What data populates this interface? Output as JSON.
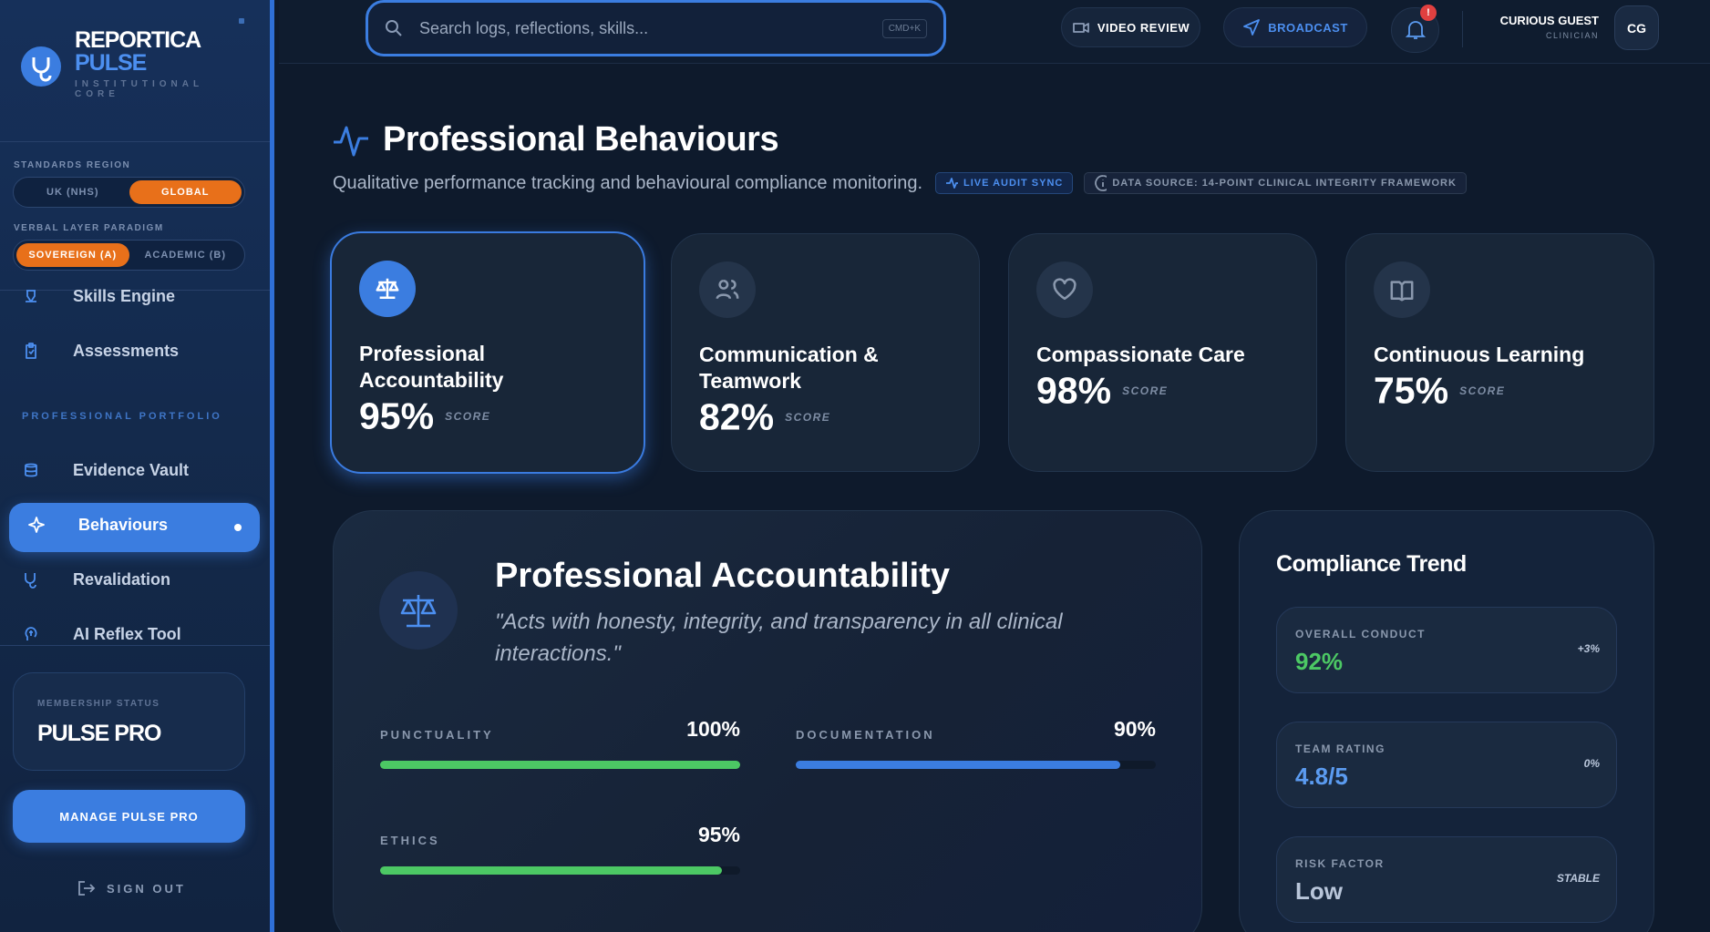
{
  "brand": {
    "name": "REPORTICA",
    "product": "PULSE",
    "tagline": "INSTITUTIONAL CORE"
  },
  "settings": [
    {
      "label": "STANDARDS REGION",
      "options": [
        "UK (NHS)",
        "GLOBAL"
      ],
      "active": 1
    },
    {
      "label": "VERBAL LAYER PARADIGM",
      "options": [
        "SOVEREIGN (A)",
        "ACADEMIC (B)"
      ],
      "active": 0
    }
  ],
  "nav": {
    "top_items": [
      "Skills Engine",
      "Assessments"
    ],
    "section": "PROFESSIONAL PORTFOLIO",
    "items": [
      "Evidence Vault",
      "Behaviours",
      "Revalidation",
      "AI Reflex Tool"
    ],
    "active": 1
  },
  "membership": {
    "label": "MEMBERSHIP STATUS",
    "tier": "PULSE PRO",
    "button": "MANAGE PULSE PRO"
  },
  "sign_out": "SIGN OUT",
  "header": {
    "search_placeholder": "Search logs, reflections, skills...",
    "shortcut": "CMD+K",
    "buttons": [
      "VIDEO REVIEW",
      "BROADCAST"
    ],
    "notification_badge": "!",
    "user": {
      "name": "CURIOUS GUEST",
      "role": "CLINICIAN",
      "initials": "CG"
    }
  },
  "page": {
    "title": "Professional Behaviours",
    "subtitle": "Qualitative performance tracking and behavioural compliance monitoring.",
    "badges": [
      "LIVE AUDIT SYNC",
      "DATA SOURCE: 14-POINT CLINICAL INTEGRITY FRAMEWORK"
    ]
  },
  "cards": [
    {
      "title": "Professional Accountability",
      "score": "95%",
      "score_label": "SCORE"
    },
    {
      "title": "Communication & Teamwork",
      "score": "82%",
      "score_label": "SCORE"
    },
    {
      "title": "Compassionate Care",
      "score": "98%",
      "score_label": "SCORE"
    },
    {
      "title": "Continuous Learning",
      "score": "75%",
      "score_label": "SCORE"
    }
  ],
  "detail": {
    "title": "Professional Accountability",
    "quote": "\"Acts with honesty, integrity, and transparency in all clinical interactions.\"",
    "range": [
      0,
      100
    ],
    "metrics": [
      {
        "name": "PUNCTUALITY",
        "value": 100,
        "label": "100%",
        "color": "#4cc864"
      },
      {
        "name": "DOCUMENTATION",
        "value": 90,
        "label": "90%",
        "color": "#3b7de0"
      },
      {
        "name": "ETHICS",
        "value": 95,
        "label": "95%",
        "color": "#4cc864"
      }
    ]
  },
  "compliance": {
    "title": "Compliance Trend",
    "rows": [
      {
        "label": "OVERALL CONDUCT",
        "value": "92%",
        "delta": "+3%",
        "color": "#4cc864"
      },
      {
        "label": "TEAM RATING",
        "value": "4.8/5",
        "delta": "0%",
        "color": "#5b9bf0"
      },
      {
        "label": "RISK FACTOR",
        "value": "Low",
        "delta": "STABLE",
        "color": "#b9c6da"
      }
    ]
  }
}
